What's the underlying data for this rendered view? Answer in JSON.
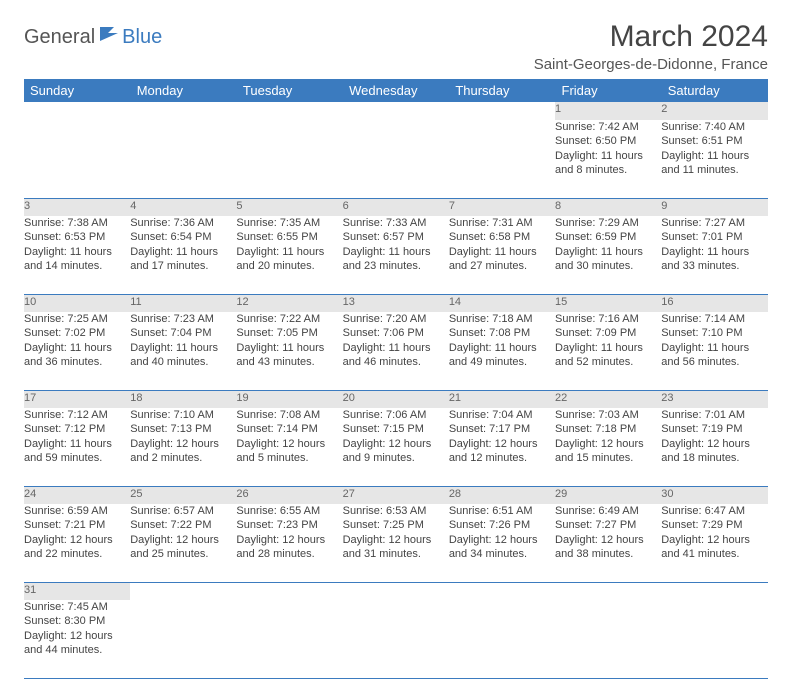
{
  "logo": {
    "text1": "General",
    "text2": "Blue"
  },
  "title": "March 2024",
  "subtitle": "Saint-Georges-de-Didonne, France",
  "headers": [
    "Sunday",
    "Monday",
    "Tuesday",
    "Wednesday",
    "Thursday",
    "Friday",
    "Saturday"
  ],
  "colors": {
    "header_bg": "#3b7bbf",
    "daynum_bg": "#e6e6e6",
    "border": "#3b7bbf",
    "text": "#444444",
    "title": "#444444"
  },
  "weeks": [
    [
      {
        "n": "",
        "lines": []
      },
      {
        "n": "",
        "lines": []
      },
      {
        "n": "",
        "lines": []
      },
      {
        "n": "",
        "lines": []
      },
      {
        "n": "",
        "lines": []
      },
      {
        "n": "1",
        "lines": [
          "Sunrise: 7:42 AM",
          "Sunset: 6:50 PM",
          "Daylight: 11 hours",
          "and 8 minutes."
        ]
      },
      {
        "n": "2",
        "lines": [
          "Sunrise: 7:40 AM",
          "Sunset: 6:51 PM",
          "Daylight: 11 hours",
          "and 11 minutes."
        ]
      }
    ],
    [
      {
        "n": "3",
        "lines": [
          "Sunrise: 7:38 AM",
          "Sunset: 6:53 PM",
          "Daylight: 11 hours",
          "and 14 minutes."
        ]
      },
      {
        "n": "4",
        "lines": [
          "Sunrise: 7:36 AM",
          "Sunset: 6:54 PM",
          "Daylight: 11 hours",
          "and 17 minutes."
        ]
      },
      {
        "n": "5",
        "lines": [
          "Sunrise: 7:35 AM",
          "Sunset: 6:55 PM",
          "Daylight: 11 hours",
          "and 20 minutes."
        ]
      },
      {
        "n": "6",
        "lines": [
          "Sunrise: 7:33 AM",
          "Sunset: 6:57 PM",
          "Daylight: 11 hours",
          "and 23 minutes."
        ]
      },
      {
        "n": "7",
        "lines": [
          "Sunrise: 7:31 AM",
          "Sunset: 6:58 PM",
          "Daylight: 11 hours",
          "and 27 minutes."
        ]
      },
      {
        "n": "8",
        "lines": [
          "Sunrise: 7:29 AM",
          "Sunset: 6:59 PM",
          "Daylight: 11 hours",
          "and 30 minutes."
        ]
      },
      {
        "n": "9",
        "lines": [
          "Sunrise: 7:27 AM",
          "Sunset: 7:01 PM",
          "Daylight: 11 hours",
          "and 33 minutes."
        ]
      }
    ],
    [
      {
        "n": "10",
        "lines": [
          "Sunrise: 7:25 AM",
          "Sunset: 7:02 PM",
          "Daylight: 11 hours",
          "and 36 minutes."
        ]
      },
      {
        "n": "11",
        "lines": [
          "Sunrise: 7:23 AM",
          "Sunset: 7:04 PM",
          "Daylight: 11 hours",
          "and 40 minutes."
        ]
      },
      {
        "n": "12",
        "lines": [
          "Sunrise: 7:22 AM",
          "Sunset: 7:05 PM",
          "Daylight: 11 hours",
          "and 43 minutes."
        ]
      },
      {
        "n": "13",
        "lines": [
          "Sunrise: 7:20 AM",
          "Sunset: 7:06 PM",
          "Daylight: 11 hours",
          "and 46 minutes."
        ]
      },
      {
        "n": "14",
        "lines": [
          "Sunrise: 7:18 AM",
          "Sunset: 7:08 PM",
          "Daylight: 11 hours",
          "and 49 minutes."
        ]
      },
      {
        "n": "15",
        "lines": [
          "Sunrise: 7:16 AM",
          "Sunset: 7:09 PM",
          "Daylight: 11 hours",
          "and 52 minutes."
        ]
      },
      {
        "n": "16",
        "lines": [
          "Sunrise: 7:14 AM",
          "Sunset: 7:10 PM",
          "Daylight: 11 hours",
          "and 56 minutes."
        ]
      }
    ],
    [
      {
        "n": "17",
        "lines": [
          "Sunrise: 7:12 AM",
          "Sunset: 7:12 PM",
          "Daylight: 11 hours",
          "and 59 minutes."
        ]
      },
      {
        "n": "18",
        "lines": [
          "Sunrise: 7:10 AM",
          "Sunset: 7:13 PM",
          "Daylight: 12 hours",
          "and 2 minutes."
        ]
      },
      {
        "n": "19",
        "lines": [
          "Sunrise: 7:08 AM",
          "Sunset: 7:14 PM",
          "Daylight: 12 hours",
          "and 5 minutes."
        ]
      },
      {
        "n": "20",
        "lines": [
          "Sunrise: 7:06 AM",
          "Sunset: 7:15 PM",
          "Daylight: 12 hours",
          "and 9 minutes."
        ]
      },
      {
        "n": "21",
        "lines": [
          "Sunrise: 7:04 AM",
          "Sunset: 7:17 PM",
          "Daylight: 12 hours",
          "and 12 minutes."
        ]
      },
      {
        "n": "22",
        "lines": [
          "Sunrise: 7:03 AM",
          "Sunset: 7:18 PM",
          "Daylight: 12 hours",
          "and 15 minutes."
        ]
      },
      {
        "n": "23",
        "lines": [
          "Sunrise: 7:01 AM",
          "Sunset: 7:19 PM",
          "Daylight: 12 hours",
          "and 18 minutes."
        ]
      }
    ],
    [
      {
        "n": "24",
        "lines": [
          "Sunrise: 6:59 AM",
          "Sunset: 7:21 PM",
          "Daylight: 12 hours",
          "and 22 minutes."
        ]
      },
      {
        "n": "25",
        "lines": [
          "Sunrise: 6:57 AM",
          "Sunset: 7:22 PM",
          "Daylight: 12 hours",
          "and 25 minutes."
        ]
      },
      {
        "n": "26",
        "lines": [
          "Sunrise: 6:55 AM",
          "Sunset: 7:23 PM",
          "Daylight: 12 hours",
          "and 28 minutes."
        ]
      },
      {
        "n": "27",
        "lines": [
          "Sunrise: 6:53 AM",
          "Sunset: 7:25 PM",
          "Daylight: 12 hours",
          "and 31 minutes."
        ]
      },
      {
        "n": "28",
        "lines": [
          "Sunrise: 6:51 AM",
          "Sunset: 7:26 PM",
          "Daylight: 12 hours",
          "and 34 minutes."
        ]
      },
      {
        "n": "29",
        "lines": [
          "Sunrise: 6:49 AM",
          "Sunset: 7:27 PM",
          "Daylight: 12 hours",
          "and 38 minutes."
        ]
      },
      {
        "n": "30",
        "lines": [
          "Sunrise: 6:47 AM",
          "Sunset: 7:29 PM",
          "Daylight: 12 hours",
          "and 41 minutes."
        ]
      }
    ],
    [
      {
        "n": "31",
        "lines": [
          "Sunrise: 7:45 AM",
          "Sunset: 8:30 PM",
          "Daylight: 12 hours",
          "and 44 minutes."
        ]
      },
      {
        "n": "",
        "lines": []
      },
      {
        "n": "",
        "lines": []
      },
      {
        "n": "",
        "lines": []
      },
      {
        "n": "",
        "lines": []
      },
      {
        "n": "",
        "lines": []
      },
      {
        "n": "",
        "lines": []
      }
    ]
  ]
}
